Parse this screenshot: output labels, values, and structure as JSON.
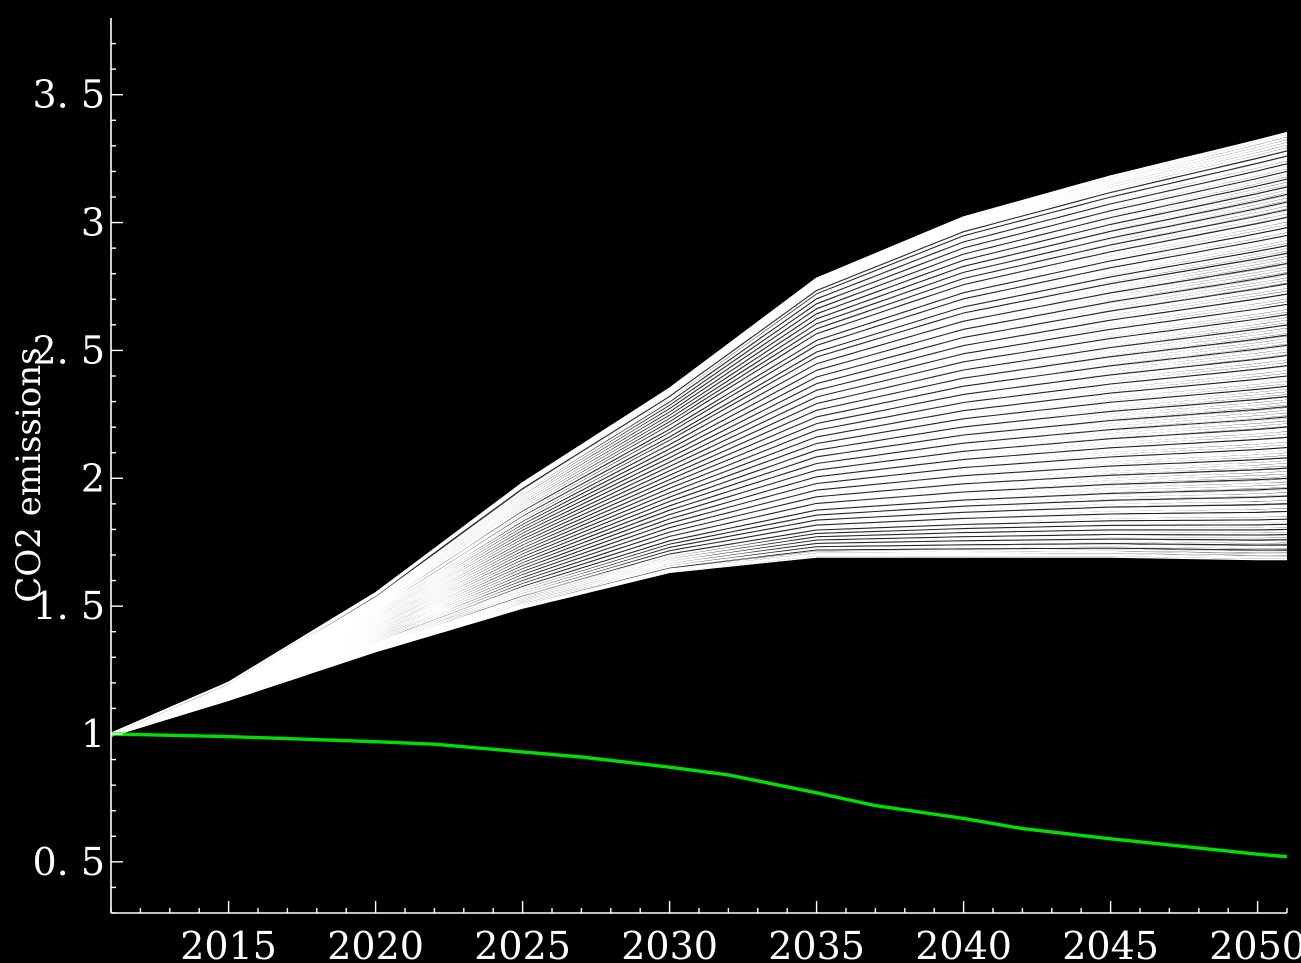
{
  "chart_data": {
    "type": "line",
    "title": "",
    "xlabel": "",
    "ylabel": "CO2 emissions",
    "xlim": [
      2011,
      2051
    ],
    "ylim": [
      0.3,
      3.8
    ],
    "grid": false,
    "legend": "none",
    "x_ticks": [
      2015,
      2020,
      2025,
      2030,
      2035,
      2040,
      2045,
      2050
    ],
    "x_tick_labels": [
      "2015",
      "2020",
      "2025",
      "2030",
      "2035",
      "2040",
      "2045",
      "2050"
    ],
    "y_ticks": [
      0.5,
      1,
      1.5,
      2,
      2.5,
      3,
      3.5
    ],
    "y_tick_labels": [
      "0. 5",
      "1",
      "1. 5",
      "2",
      "2. 5",
      "3",
      "3. 5"
    ],
    "colors": {
      "background": "#000000",
      "ensemble": "#ffffff",
      "highlight": "#00e000"
    },
    "series": [
      {
        "role": "ensemble-upper-envelope",
        "color": "#ffffff",
        "x": [
          2011,
          2015,
          2020,
          2025,
          2030,
          2035,
          2040,
          2045,
          2050,
          2051
        ],
        "y": [
          1.0,
          1.2,
          1.55,
          1.98,
          2.35,
          2.78,
          3.02,
          3.18,
          3.32,
          3.35
        ]
      },
      {
        "role": "ensemble-lower-envelope",
        "color": "#ffffff",
        "x": [
          2011,
          2015,
          2020,
          2025,
          2030,
          2035,
          2040,
          2045,
          2050,
          2051
        ],
        "y": [
          1.0,
          1.14,
          1.33,
          1.5,
          1.64,
          1.7,
          1.7,
          1.7,
          1.69,
          1.69
        ]
      },
      {
        "role": "highlighted-trajectory",
        "color": "#00e000",
        "x": [
          2011,
          2015,
          2020,
          2022,
          2025,
          2027,
          2030,
          2032,
          2035,
          2037,
          2040,
          2042,
          2045,
          2050,
          2051
        ],
        "y": [
          1.0,
          0.99,
          0.97,
          0.96,
          0.93,
          0.91,
          0.87,
          0.84,
          0.77,
          0.72,
          0.67,
          0.63,
          0.59,
          0.53,
          0.52
        ]
      }
    ],
    "ensemble_final_values_2051": [
      3.35,
      3.28,
      3.26,
      3.23,
      3.2,
      3.17,
      3.14,
      3.11,
      3.08,
      3.05,
      3.02,
      2.98,
      2.95,
      2.91,
      2.88,
      2.84,
      2.8,
      2.76,
      2.72,
      2.68,
      2.64,
      2.6,
      2.56,
      2.52,
      2.48,
      2.44,
      2.4,
      2.36,
      2.32,
      2.28,
      2.24,
      2.2,
      2.16,
      2.12,
      2.08,
      2.04,
      2.0,
      1.96,
      1.93,
      1.9,
      1.87,
      1.84,
      1.82,
      1.8,
      1.78,
      1.76,
      1.74,
      1.72,
      1.71,
      1.7,
      1.69
    ]
  }
}
